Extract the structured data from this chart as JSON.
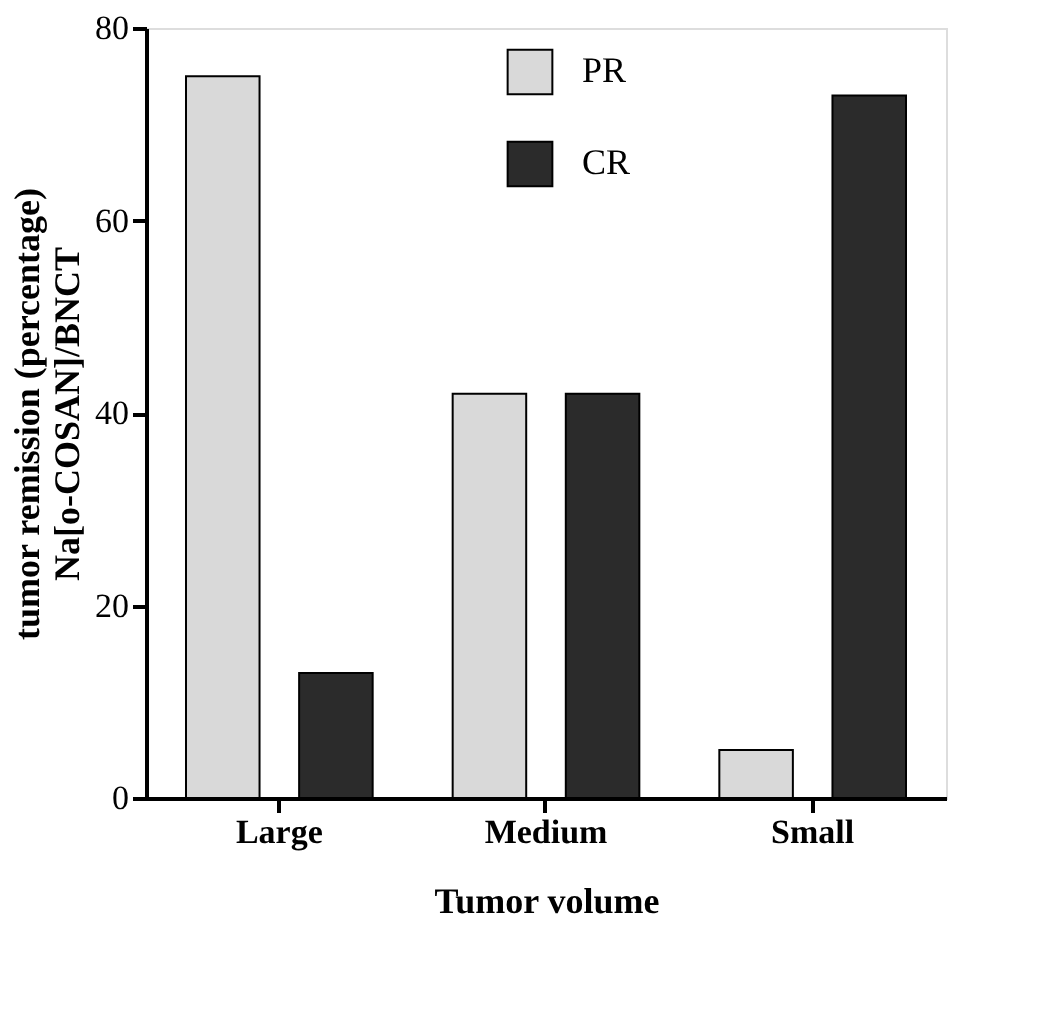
{
  "chart_data": {
    "type": "bar",
    "xlabel": "Tumor volume",
    "ylabel": "tumor remission (percentage)\nNa[o-COSAN]/BNCT",
    "categories": [
      "Large",
      "Medium",
      "Small"
    ],
    "series": [
      {
        "name": "PR",
        "color": "#d9d9d9",
        "values": [
          75,
          42,
          5
        ]
      },
      {
        "name": "CR",
        "color": "#2b2b2b",
        "values": [
          13,
          42,
          73
        ]
      }
    ],
    "ylim": [
      0,
      80
    ],
    "yticks": [
      0,
      20,
      40,
      60,
      80
    ],
    "grid": false,
    "legend": "top right"
  }
}
